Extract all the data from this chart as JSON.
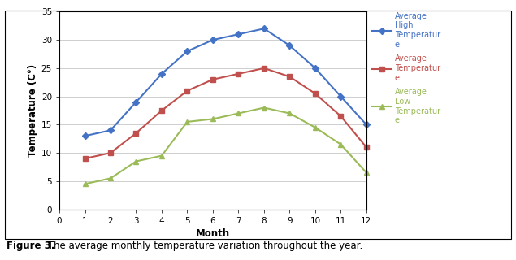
{
  "months": [
    1,
    2,
    3,
    4,
    5,
    6,
    7,
    8,
    9,
    10,
    11,
    12
  ],
  "avg_high": [
    13,
    14,
    19,
    24,
    28,
    30,
    31,
    32,
    29,
    25,
    20,
    15
  ],
  "avg_temp": [
    9,
    10,
    13.5,
    17.5,
    21,
    23,
    24,
    25,
    23.5,
    20.5,
    16.5,
    11
  ],
  "avg_low": [
    4.5,
    5.5,
    8.5,
    9.5,
    15.5,
    16,
    17,
    18,
    17,
    14.5,
    11.5,
    6.5
  ],
  "high_color": "#4472C4",
  "temp_color": "#C0504D",
  "low_color": "#9BBB59",
  "xlim": [
    0,
    12
  ],
  "ylim": [
    0,
    35
  ],
  "xticks": [
    0,
    1,
    2,
    3,
    4,
    5,
    6,
    7,
    8,
    9,
    10,
    11,
    12
  ],
  "yticks": [
    0,
    5,
    10,
    15,
    20,
    25,
    30,
    35
  ],
  "xlabel": "Month",
  "ylabel": "Temperature (C°)",
  "legend_label_high": "Average\nHigh\nTemperatur\ne",
  "legend_label_temp": "Average\nTemperatur\ne",
  "legend_label_low": "Average\nLow\nTemperatur\ne",
  "caption_bold": "Figure 3.",
  "caption_normal": " The average monthly temperature variation throughout the year.",
  "marker_style_high": "D",
  "marker_style_temp": "s",
  "marker_style_low": "^",
  "markersize": 4,
  "linewidth": 1.5
}
